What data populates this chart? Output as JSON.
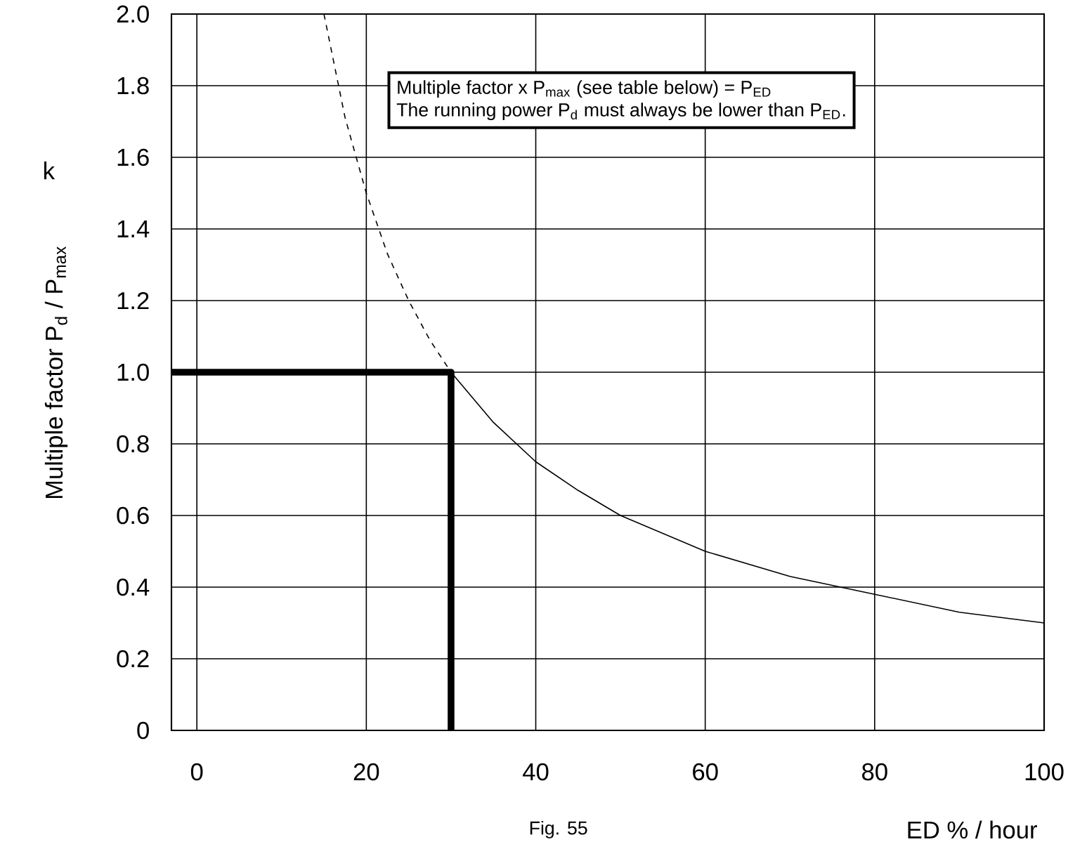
{
  "chart_data": {
    "type": "line",
    "xlabel": "ED %  / hour",
    "ylabel": "Multiple factor P$_{d}$ / P$_{max}$",
    "annotations": [
      "Multiple factor x P$_{max}$  (see table below) = P$_{ED}$",
      "The running power P$_{d}$ must always be lower than P$_{ED}$.",
      "Fig. 55",
      "k"
    ],
    "series": [
      {
        "color": "#000000",
        "line_style": "dashed",
        "x": [
          15,
          17.5,
          20,
          22.5,
          25,
          27.5,
          30
        ],
        "values": [
          2.0,
          1.71,
          1.5,
          1.33,
          1.2,
          1.09,
          1.0
        ]
      },
      {
        "color": "#000000",
        "line_style": "solid",
        "x": [
          30,
          35,
          40,
          45,
          50,
          60,
          70,
          80,
          90,
          100
        ],
        "values": [
          1.0,
          0.86,
          0.75,
          0.67,
          0.6,
          0.5,
          0.43,
          0.38,
          0.33,
          0.3
        ]
      },
      {
        "color": "#000000",
        "line_style": "solid",
        "x": [
          -3,
          30,
          30
        ],
        "values": [
          1.0,
          1.0,
          0
        ]
      }
    ],
    "xlim": [
      -3,
      100
    ],
    "ylim": [
      0,
      2
    ],
    "xticks": [
      0,
      20,
      40,
      60,
      80,
      100
    ],
    "yticks": [
      0,
      0.2,
      0.4,
      0.6,
      0.8,
      {
        "value": 1,
        "label": "1.0"
      },
      1.2,
      1.4,
      1.6,
      1.8,
      {
        "value": 2,
        "label": "2.0"
      }
    ],
    "grid": true
  }
}
